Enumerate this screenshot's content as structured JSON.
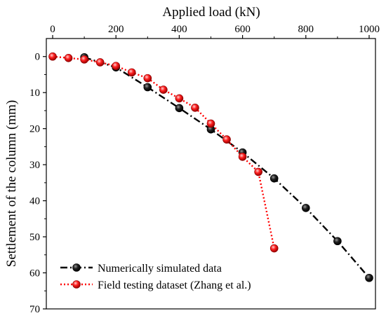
{
  "chart_data": {
    "type": "line",
    "xlabel": "Applied load (kN)",
    "ylabel": "Settlement of the column (mm)",
    "xlim": [
      -20,
      1020
    ],
    "ylim": [
      70,
      -5
    ],
    "y_inverted": true,
    "x_axis_position": "top",
    "xticks": [
      0,
      200,
      400,
      600,
      800,
      1000
    ],
    "yticks": [
      0,
      10,
      20,
      30,
      40,
      50,
      60,
      70
    ],
    "grid": false,
    "legend_position": "bottom-left",
    "series": [
      {
        "name": "Numerically simulated data",
        "color": "#000000",
        "line_style": "dash-dot",
        "marker": "sphere",
        "x": [
          100,
          200,
          300,
          400,
          500,
          600,
          700,
          800,
          900,
          1000
        ],
        "y": [
          0.2,
          3.0,
          8.5,
          14.3,
          20.2,
          26.6,
          33.8,
          42.0,
          51.2,
          61.4
        ]
      },
      {
        "name": "Field testing dataset (Zhang et al.)",
        "color": "#ff0000",
        "line_style": "dotted",
        "marker": "sphere",
        "x": [
          0,
          50,
          100,
          150,
          200,
          250,
          300,
          350,
          400,
          450,
          500,
          550,
          600,
          650,
          700
        ],
        "y": [
          0.0,
          0.4,
          0.8,
          1.6,
          2.6,
          4.4,
          6.0,
          9.2,
          11.6,
          14.2,
          18.6,
          23.0,
          27.8,
          32.0,
          53.2
        ]
      }
    ]
  }
}
